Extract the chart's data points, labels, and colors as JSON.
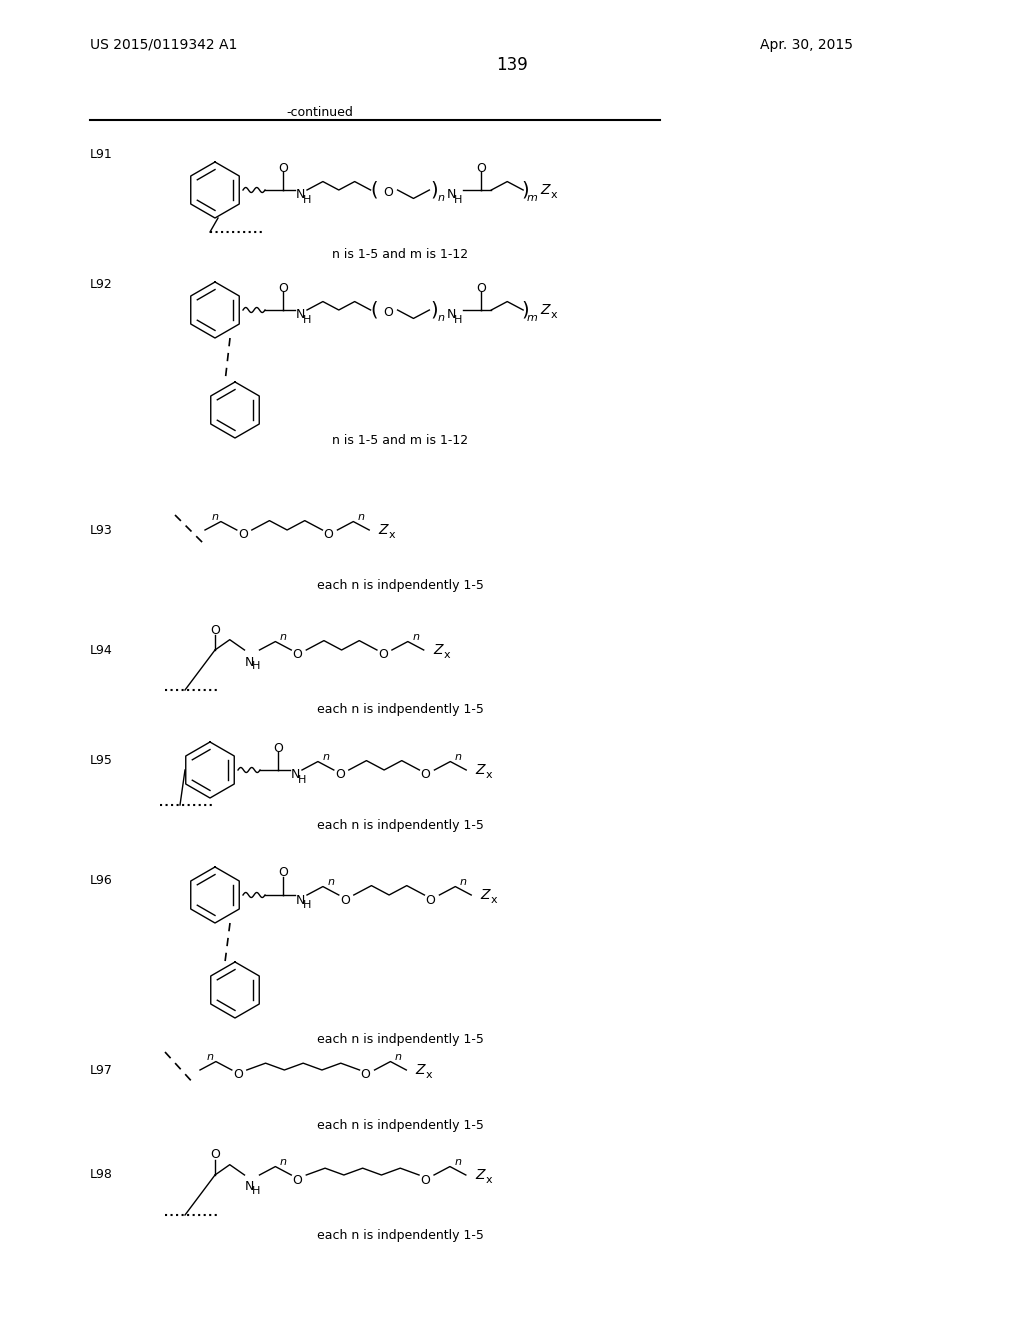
{
  "page_number": "139",
  "patent_number": "US 2015/0119342 A1",
  "patent_date": "Apr. 30, 2015",
  "continued_label": "-continued",
  "background_color": "#ffffff",
  "captions": {
    "L91": "n is 1-5 and m is 1-12",
    "L92": "n is 1-5 and m is 1-12",
    "L93": "each n is indpendently 1-5",
    "L94": "each n is indpendently 1-5",
    "L95": "each n is indpendently 1-5",
    "L96": "each n is indpendently 1-5",
    "L97": "each n is indpendently 1-5",
    "L98": "each n is indpendently 1-5"
  }
}
